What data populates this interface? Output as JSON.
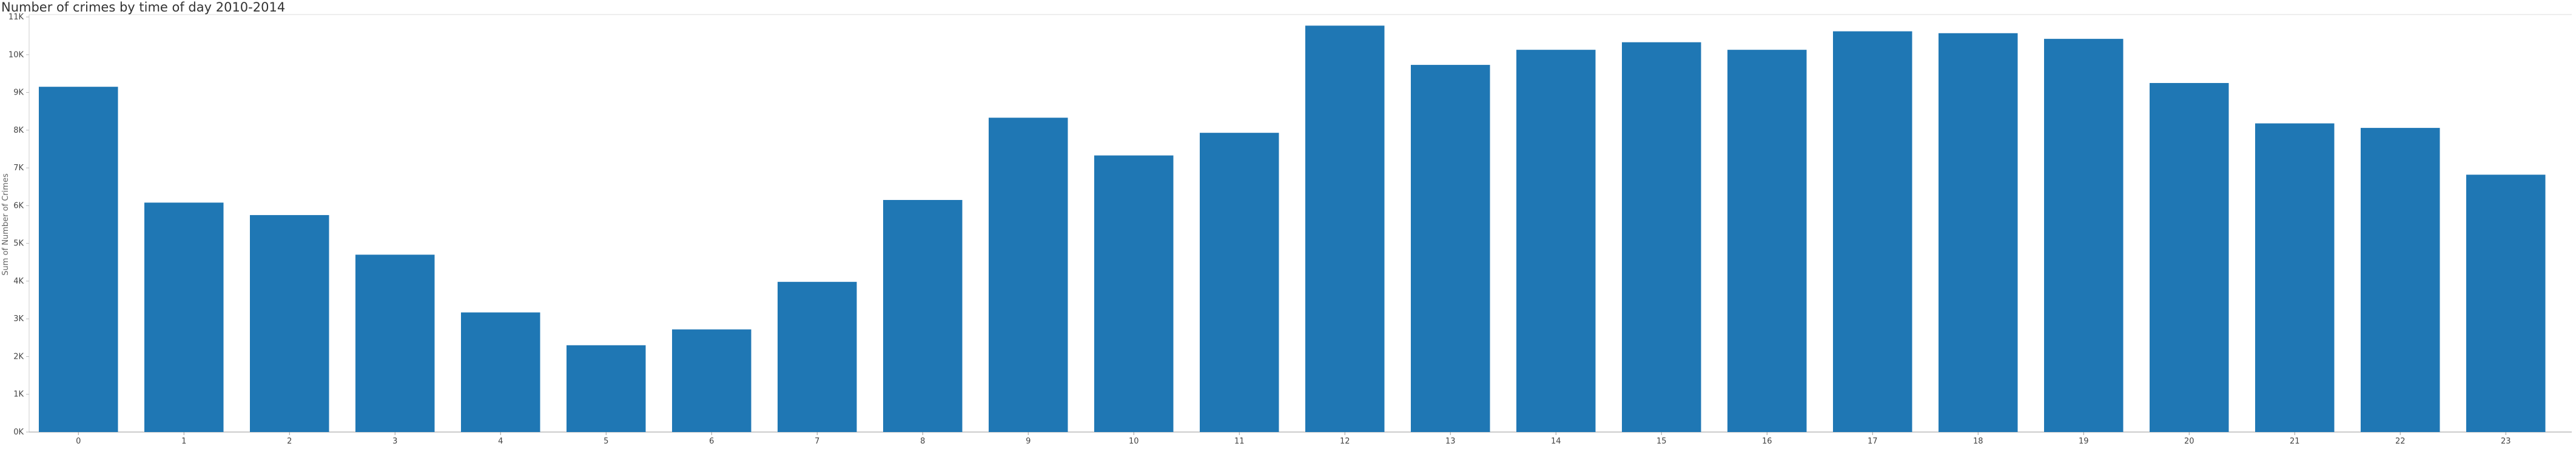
{
  "chart_data": {
    "type": "bar",
    "title": "Number of crimes by time of day 2010-2014",
    "xlabel": "",
    "ylabel": "Sum of Number of Crimes",
    "categories": [
      "0",
      "1",
      "2",
      "3",
      "4",
      "5",
      "6",
      "7",
      "8",
      "9",
      "10",
      "11",
      "12",
      "13",
      "14",
      "15",
      "16",
      "17",
      "18",
      "19",
      "20",
      "21",
      "22",
      "23"
    ],
    "values": [
      9150,
      6080,
      5750,
      4700,
      3170,
      2300,
      2720,
      3980,
      6150,
      8330,
      7330,
      7930,
      10770,
      9730,
      10130,
      10330,
      10130,
      10620,
      10570,
      10420,
      9250,
      8180,
      8060,
      6820
    ],
    "ylim": [
      0,
      11000
    ],
    "yticks": [
      0,
      1000,
      2000,
      3000,
      4000,
      5000,
      6000,
      7000,
      8000,
      9000,
      10000,
      11000
    ],
    "ytick_labels": [
      "0K",
      "1K",
      "2K",
      "3K",
      "4K",
      "5K",
      "6K",
      "7K",
      "8K",
      "9K",
      "10K",
      "11K"
    ],
    "grid": false,
    "bar_color": "#1f77b4"
  }
}
